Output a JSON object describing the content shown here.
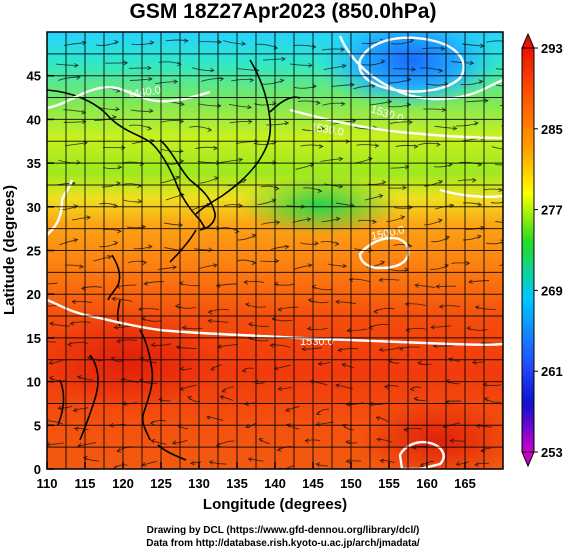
{
  "title": "GSM 18Z27Apr2023 (850.0hPa)",
  "map": {
    "x_axis": {
      "label": "Longitude (degrees)",
      "range": [
        110,
        170
      ],
      "ticks": [
        "110",
        "115",
        "120",
        "125",
        "130",
        "135",
        "140",
        "145",
        "150",
        "155",
        "160",
        "165"
      ]
    },
    "y_axis": {
      "label": "Latitude  (degrees)",
      "range": [
        0,
        50
      ],
      "ticks": [
        "0",
        "5",
        "10",
        "15",
        "20",
        "25",
        "30",
        "35",
        "40",
        "45"
      ]
    },
    "grid": "5-degree lines",
    "contours": [
      {
        "label": "1440.0"
      },
      {
        "label": "1530.0"
      },
      {
        "label": "1530.0"
      },
      {
        "label": "1500.0"
      },
      {
        "label": "1530.0"
      }
    ],
    "colorscale": [
      "#cc00cc",
      "#0000cc",
      "#00b4ff",
      "#00dd55",
      "#ffff00",
      "#ff8800",
      "#ee1100"
    ]
  },
  "colorbar": {
    "labels": [
      "293",
      "285",
      "277",
      "269",
      "261",
      "253"
    ],
    "min": 253,
    "max": 293
  },
  "credits": {
    "line1": "Drawing by DCL (https://www.gfd-dennou.org/library/dcl/)",
    "line2": "Data from http://database.rish.kyoto-u.ac.jp/arch/jmadata/"
  }
}
